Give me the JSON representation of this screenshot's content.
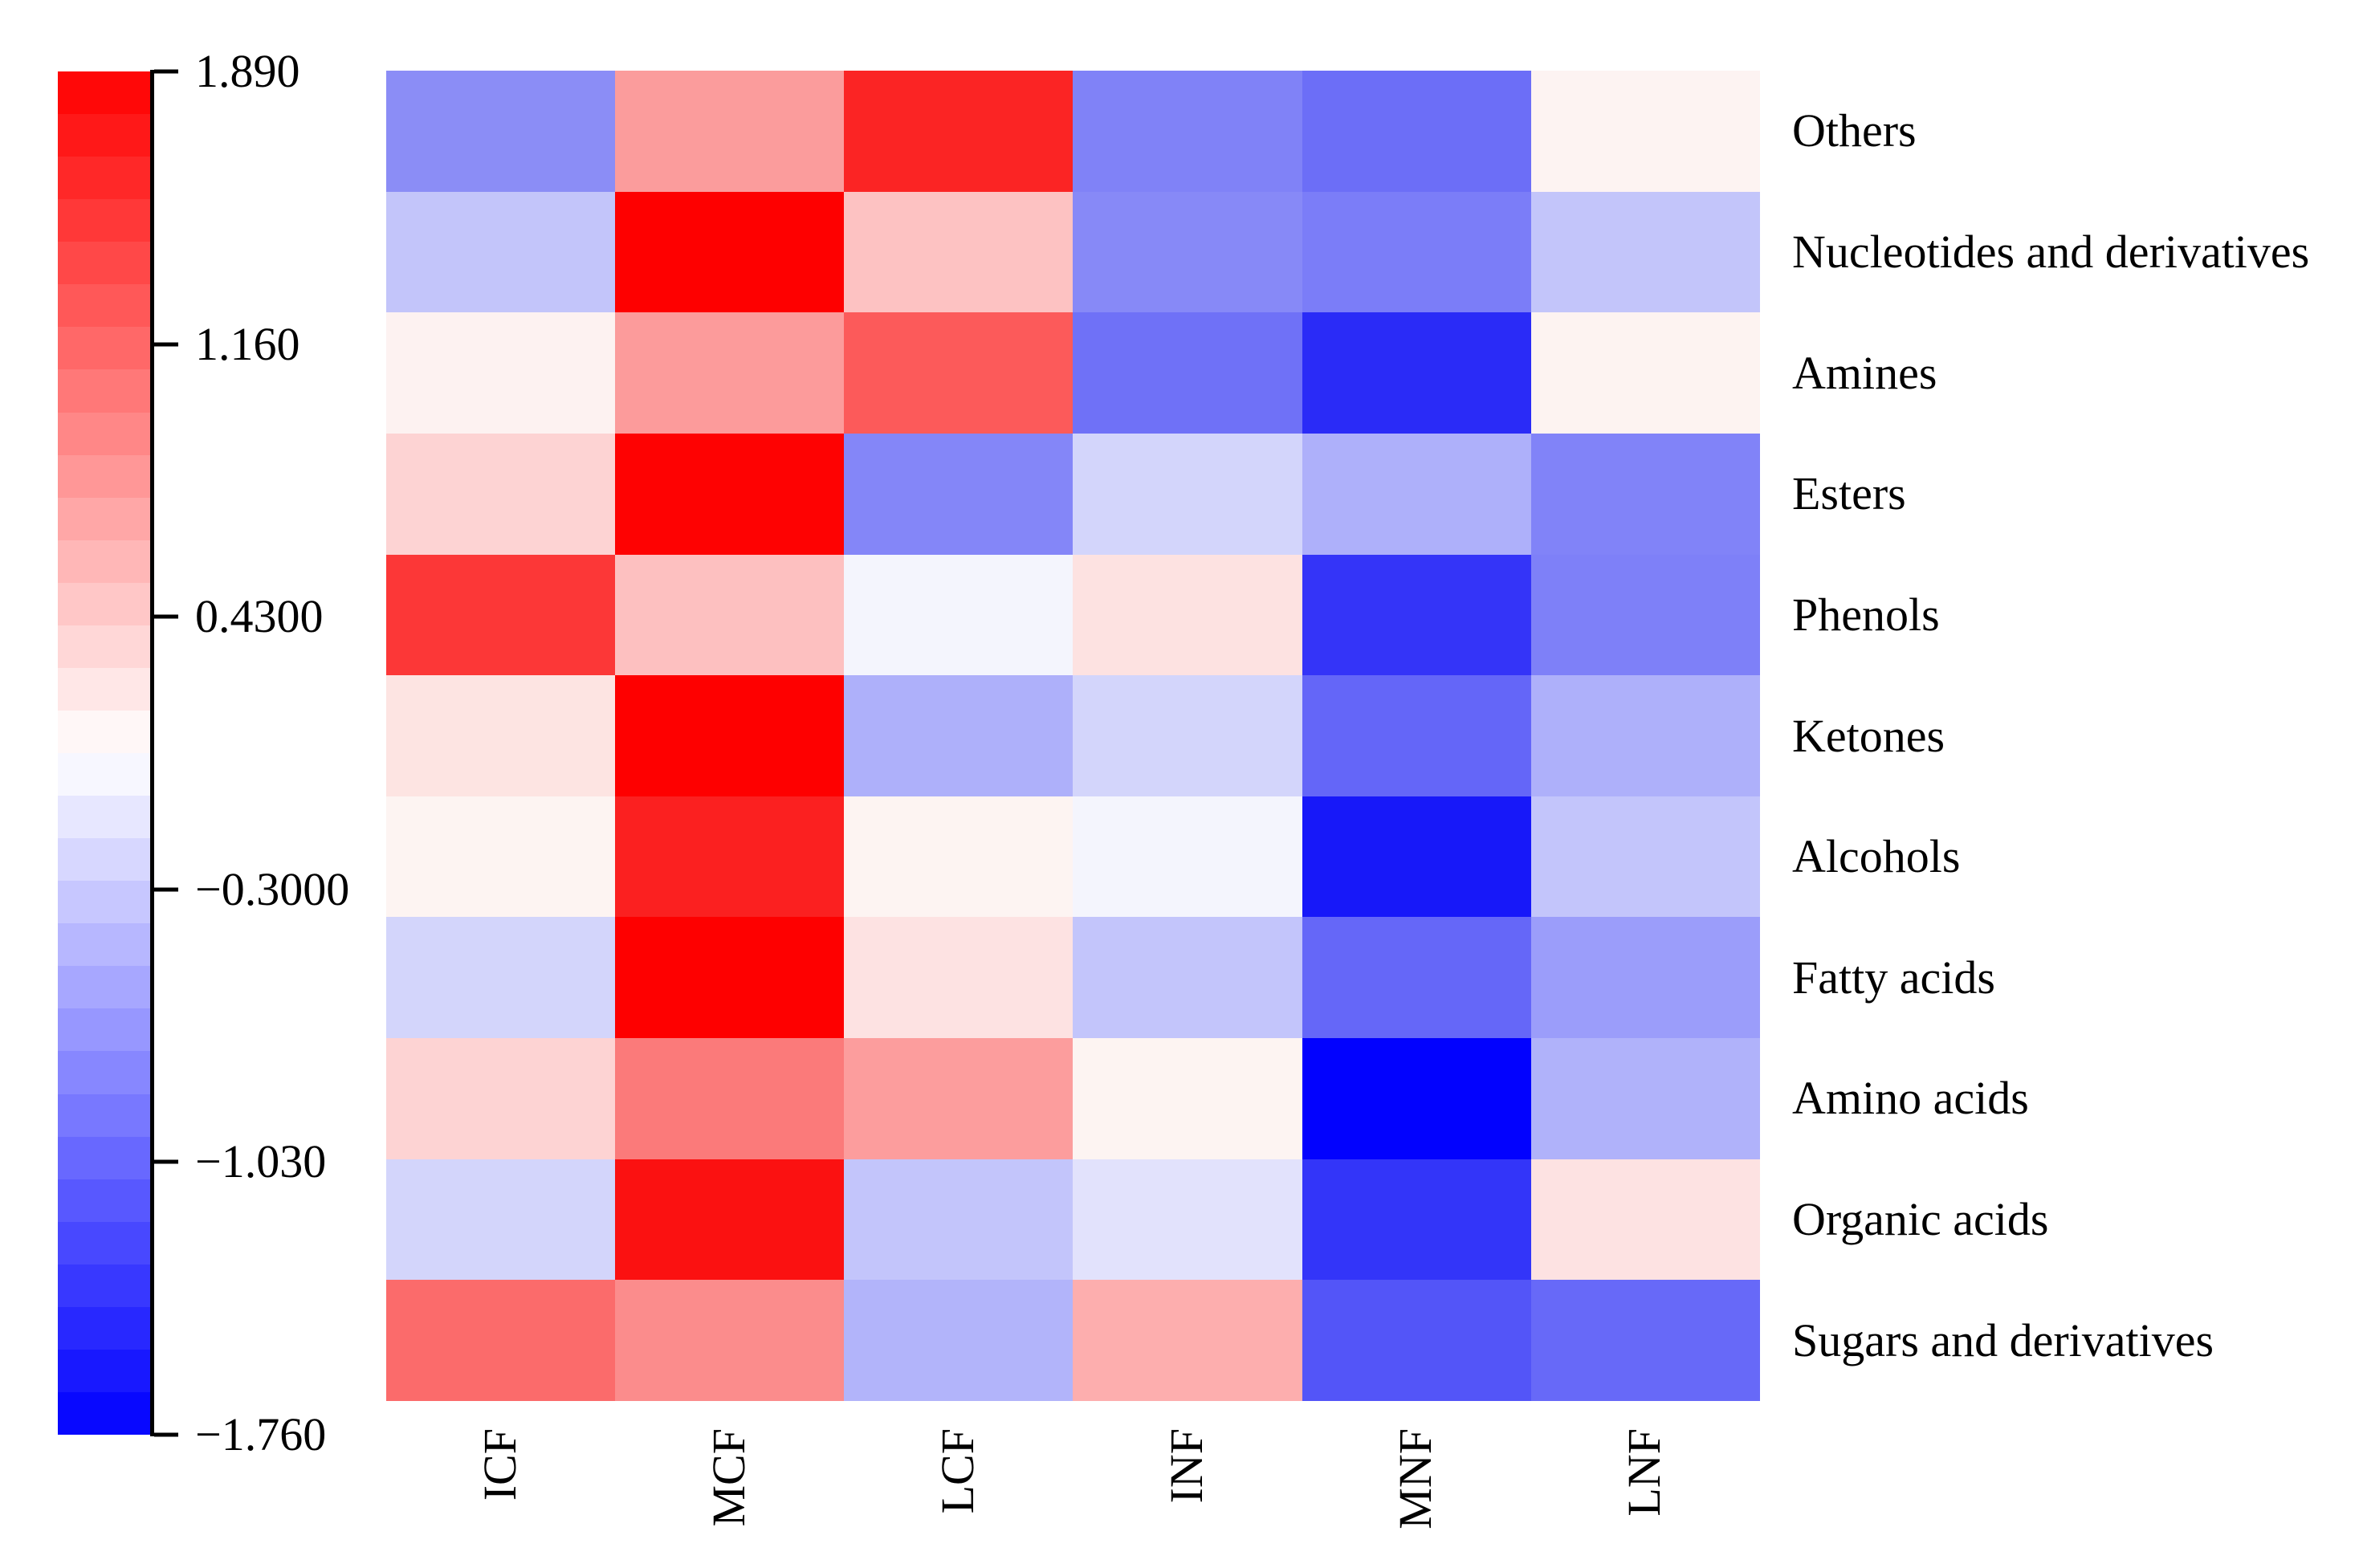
{
  "figure": {
    "background": "#ffffff",
    "text_color": "#000000"
  },
  "chart_data": {
    "type": "heatmap",
    "title": "",
    "xlabel": "",
    "ylabel": "",
    "grid": false,
    "columns": [
      "ICF",
      "MCF",
      "LCF",
      "INF",
      "MNF",
      "LNF"
    ],
    "rows": [
      "Others",
      "Nucleotides and derivatives",
      "Amines",
      "Esters",
      "Phenols",
      "Ketones",
      "Alcohols",
      "Fatty acids",
      "Amino acids",
      "Organic acids",
      "Sugars and derivatives"
    ],
    "values": [
      [
        -0.76,
        0.77,
        1.64,
        -0.85,
        -0.99,
        0.14
      ],
      [
        -0.36,
        1.89,
        0.5,
        -0.79,
        -0.88,
        -0.36
      ],
      [
        0.16,
        0.78,
        1.25,
        -0.97,
        -1.46,
        0.15
      ],
      [
        0.38,
        1.88,
        -0.82,
        -0.25,
        -0.51,
        -0.84
      ],
      [
        1.5,
        0.52,
        -0.01,
        0.27,
        -1.39,
        -0.86
      ],
      [
        0.26,
        1.89,
        -0.51,
        -0.25,
        -1.04,
        -0.51
      ],
      [
        0.15,
        1.66,
        0.15,
        -0.01,
        -1.6,
        -0.36
      ],
      [
        -0.25,
        1.89,
        0.27,
        -0.36,
        -1.03,
        -0.65
      ],
      [
        0.38,
        1.02,
        0.77,
        0.15,
        -1.75,
        -0.5
      ],
      [
        -0.25,
        1.77,
        -0.36,
        -0.14,
        -1.39,
        0.27
      ],
      [
        1.12,
        0.89,
        -0.49,
        0.65,
        -1.17,
        -1.02
      ]
    ],
    "cell_colors": [
      [
        "#8b8df6",
        "#fb9c9c",
        "#fb2424",
        "#8082f7",
        "#6c6ef7",
        "#fdf3f2"
      ],
      [
        "#c3c5fa",
        "#fe0000",
        "#fdc2c2",
        "#8789f7",
        "#7b7df8",
        "#c3c5fa"
      ],
      [
        "#fdf2f1",
        "#fc9b9b",
        "#fc5a5a",
        "#6f71f7",
        "#2a2bf7",
        "#fdf3f1"
      ],
      [
        "#fdd3d3",
        "#fe0202",
        "#8486f8",
        "#d3d5fb",
        "#aeb0fa",
        "#8183f8"
      ],
      [
        "#fc3737",
        "#fdc0c0",
        "#f4f5fd",
        "#fde2e1",
        "#3434f8",
        "#7e80f8"
      ],
      [
        "#fde4e2",
        "#fe0000",
        "#aeb0fa",
        "#d3d5fb",
        "#6466f8",
        "#aeb0fa"
      ],
      [
        "#fdf4f2",
        "#fb2020",
        "#fdf4f2",
        "#f4f5fd",
        "#1718f9",
        "#c3c5fb"
      ],
      [
        "#d3d5fb",
        "#fe0000",
        "#fde2e2",
        "#c3c5fb",
        "#6567f8",
        "#9b9dfa"
      ],
      [
        "#fdd3d3",
        "#fb7a7a",
        "#fc9d9d",
        "#fdf4f2",
        "#0202fe",
        "#b0b2fa"
      ],
      [
        "#d3d5fb",
        "#fb1111",
        "#c3c5fb",
        "#e2e2fc",
        "#3335f9",
        "#fde2e2"
      ],
      [
        "#fb6b6b",
        "#fb8c8c",
        "#b2b4fa",
        "#fdaeae",
        "#5355f8",
        "#6769f8"
      ]
    ],
    "colorbar": {
      "position": "left",
      "vmin": -1.76,
      "vmax": 1.89,
      "segments": 32,
      "colormap": "bwr",
      "color_low": "#0000ff",
      "color_mid": "#ffffff",
      "color_high": "#ff0000",
      "ticks": [
        {
          "label": "1.890",
          "value": 1.89
        },
        {
          "label": "1.160",
          "value": 1.16
        },
        {
          "label": "0.4300",
          "value": 0.43
        },
        {
          "label": "−0.3000",
          "value": -0.3
        },
        {
          "label": "−1.030",
          "value": -1.03
        },
        {
          "label": "−1.760",
          "value": -1.76
        }
      ]
    }
  }
}
